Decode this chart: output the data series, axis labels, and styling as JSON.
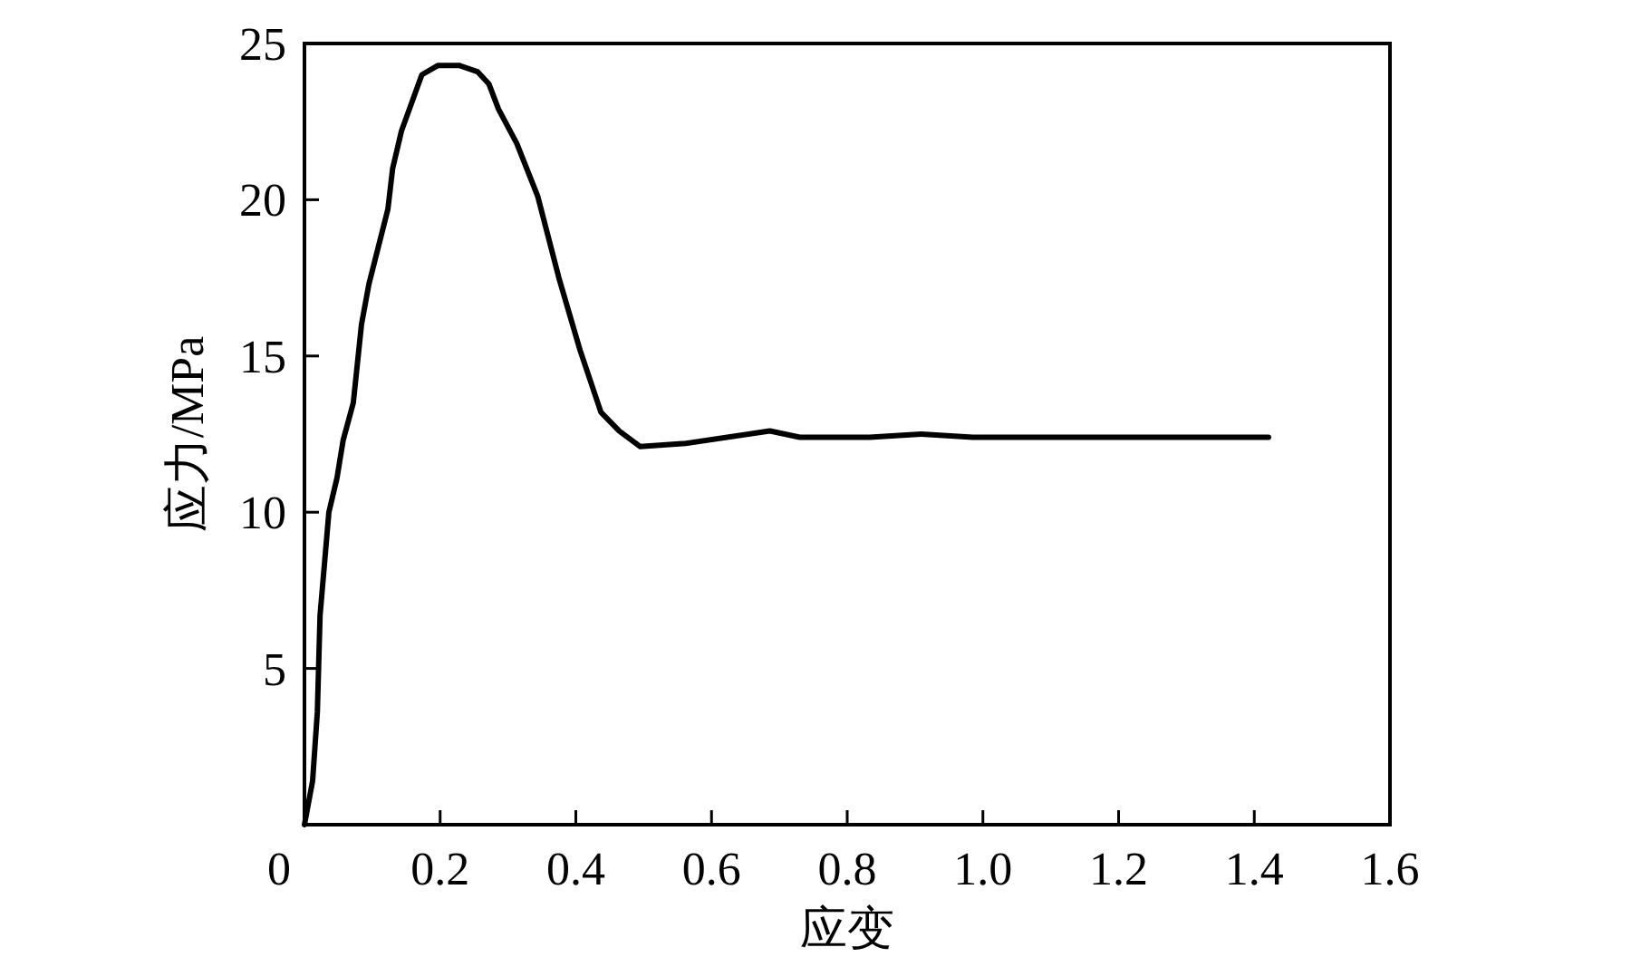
{
  "chart_data": {
    "type": "line",
    "xlabel": "应变",
    "ylabel": "应力/MPa",
    "x": [
      0,
      0.012,
      0.019,
      0.023,
      0.036,
      0.048,
      0.057,
      0.072,
      0.084,
      0.095,
      0.123,
      0.13,
      0.143,
      0.173,
      0.197,
      0.228,
      0.255,
      0.272,
      0.286,
      0.313,
      0.344,
      0.375,
      0.406,
      0.437,
      0.464,
      0.495,
      0.562,
      0.686,
      0.73,
      0.833,
      0.909,
      0.985,
      1.421
    ],
    "series": [
      {
        "color": "#000000",
        "values": [
          0,
          1.4,
          3.6,
          6.7,
          10.0,
          11.1,
          12.3,
          13.5,
          16.0,
          17.3,
          19.7,
          21.0,
          22.2,
          24.0,
          24.3,
          24.3,
          24.1,
          23.7,
          22.9,
          21.8,
          20.1,
          17.5,
          15.2,
          13.2,
          12.6,
          12.1,
          12.2,
          12.6,
          12.4,
          12.4,
          12.5,
          12.4,
          12.4
        ]
      }
    ],
    "xlim": [
      0,
      1.6
    ],
    "ylim": [
      0,
      25
    ],
    "xticks": [
      0,
      0.2,
      0.4,
      0.6,
      0.8,
      {
        "value": 1,
        "label": "1.0"
      },
      1.2,
      1.4,
      1.6
    ],
    "yticks": [
      {
        "value": 0,
        "label": null
      },
      5,
      10,
      15,
      20,
      25
    ],
    "grid": false,
    "marker": "none",
    "line_style": "solid"
  }
}
